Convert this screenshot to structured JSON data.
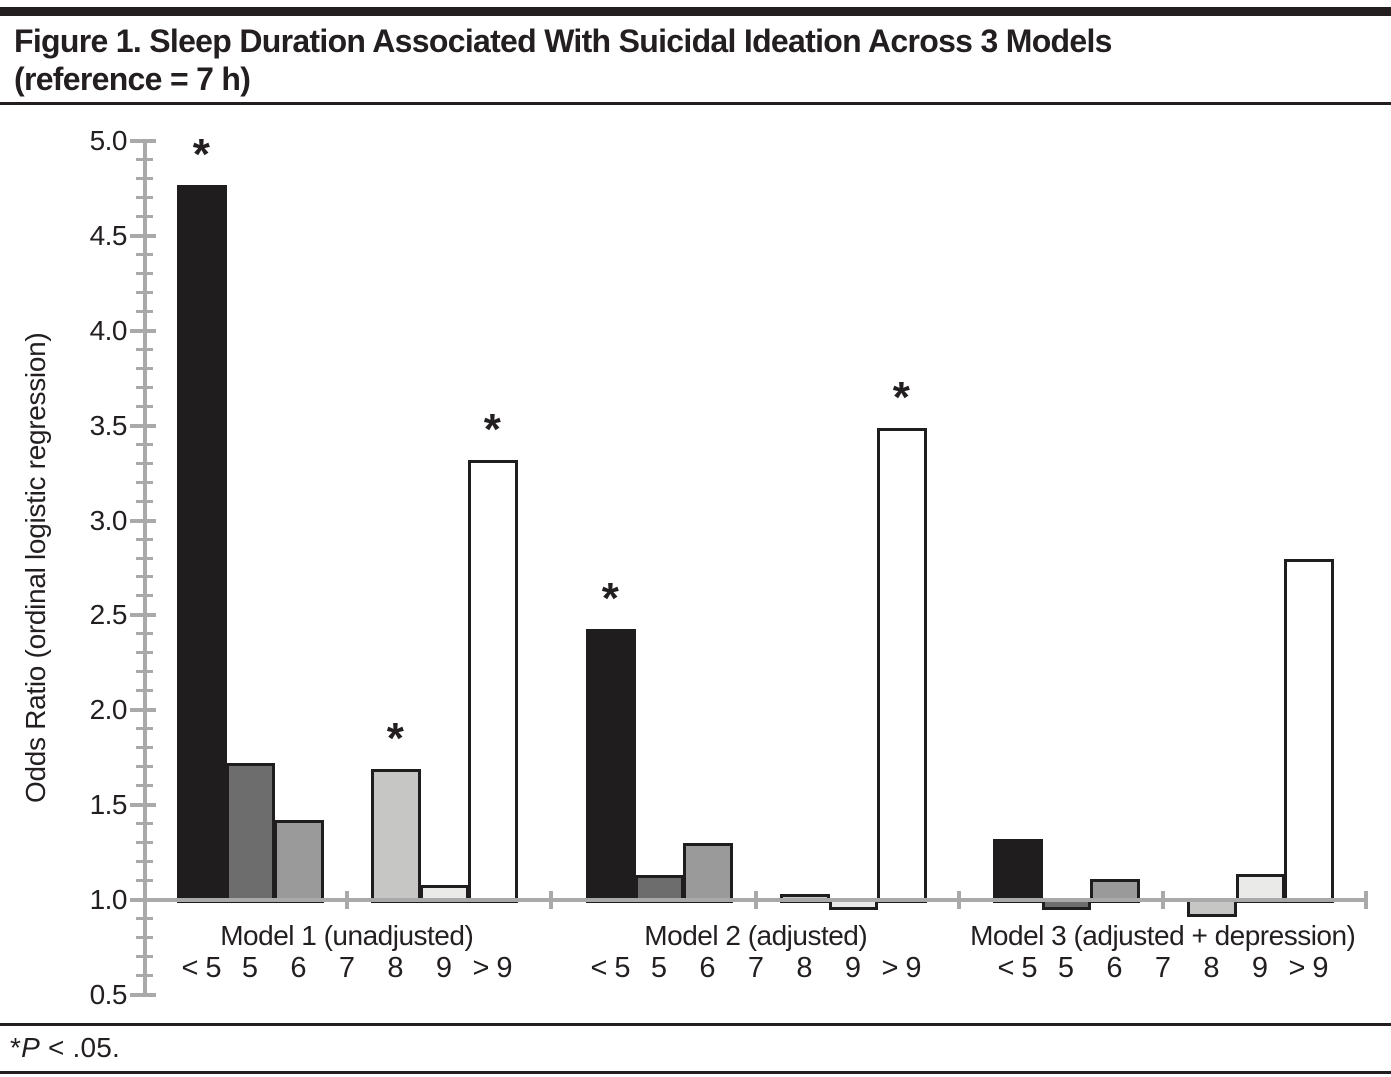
{
  "header": {
    "title_line1": "Figure 1. Sleep Duration Associated With Suicidal Ideation Across 3 Models",
    "title_line2": "(reference = 7 h)"
  },
  "footnote": {
    "star": "*",
    "p_label": "P",
    "rest": " < .05."
  },
  "chart_data": {
    "type": "bar",
    "title": "Figure 1. Sleep Duration Associated With Suicidal Ideation Across 3 Models (reference = 7 h)",
    "ylabel": "Odds Ratio (ordinal logistic regression)",
    "xlabel": "",
    "ylim": [
      0.5,
      5.0
    ],
    "ytick_major_step": 0.5,
    "ytick_minor_step": 0.1,
    "ytick_labels": [
      "0.5",
      "1.0",
      "1.5",
      "2.0",
      "2.5",
      "3.0",
      "3.5",
      "4.0",
      "4.5",
      "5.0"
    ],
    "bar_baseline": 1.0,
    "reference_category": "7",
    "categories": [
      "< 5",
      "5",
      "6",
      "7",
      "8",
      "9",
      "> 9"
    ],
    "bar_colors": [
      "#1f1d1e",
      "#6d6d6d",
      "#9a9a9a",
      null,
      "#c6c6c4",
      "#eaeae8",
      "#ffffff"
    ],
    "grid": false,
    "legend": "none",
    "significance_marker": "*",
    "groups": [
      {
        "label": "Model 1 (unadjusted)",
        "values": [
          4.77,
          1.72,
          1.42,
          null,
          1.69,
          1.08,
          3.32
        ],
        "significant": [
          true,
          false,
          false,
          false,
          true,
          false,
          true
        ]
      },
      {
        "label": "Model 2 (adjusted)",
        "values": [
          2.43,
          1.13,
          1.3,
          null,
          1.03,
          0.96,
          3.49
        ],
        "significant": [
          true,
          false,
          false,
          false,
          false,
          false,
          true
        ]
      },
      {
        "label": "Model 3 (adjusted + depression)",
        "values": [
          1.32,
          0.96,
          1.11,
          null,
          0.92,
          1.14,
          2.8
        ],
        "significant": [
          false,
          false,
          false,
          false,
          false,
          false,
          false
        ]
      }
    ],
    "colors": {
      "text": "#231f20",
      "axis": "#a9a9a9",
      "bar_outline": "#1f1d1e"
    }
  }
}
